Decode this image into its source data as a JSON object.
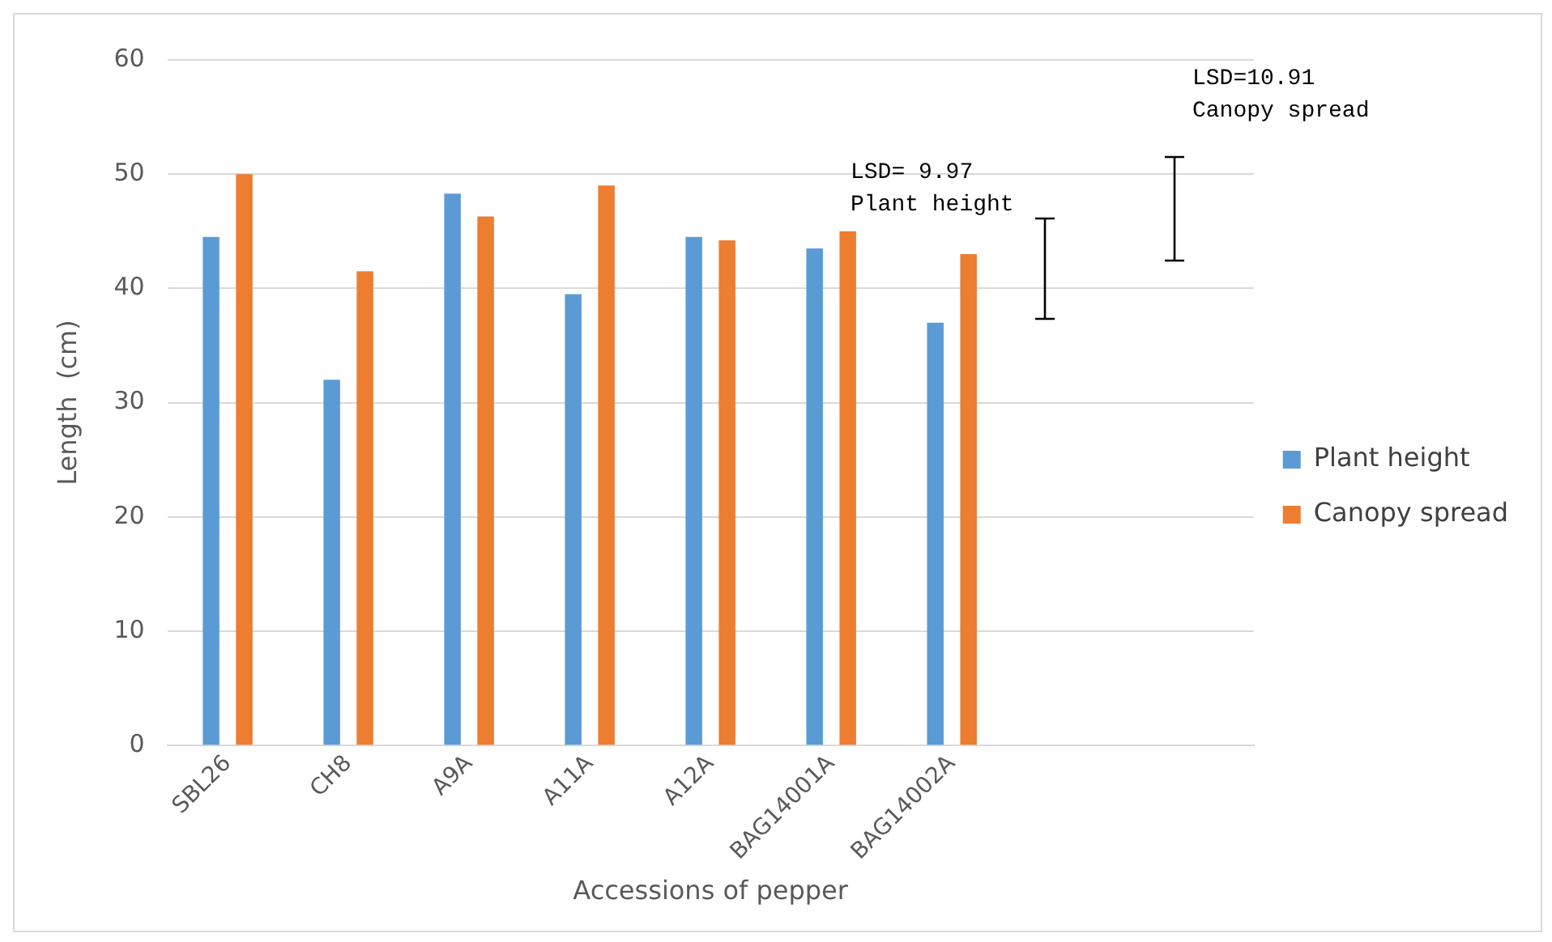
{
  "chart_data": {
    "type": "bar",
    "xlabel": "Accessions of pepper",
    "ylabel": "Length  (cm)",
    "categories": [
      "SBL26",
      "CH8",
      "A9A",
      "A11A",
      "A12A",
      "BAG14001A",
      "BAG14002A",
      null,
      null
    ],
    "series": [
      {
        "name": "Plant height",
        "color": "#5b9bd5",
        "values": [
          44.5,
          32,
          48.3,
          39.5,
          44.5,
          43.5,
          37,
          null,
          null
        ]
      },
      {
        "name": "Canopy spread",
        "color": "#ed7d31",
        "values": [
          50,
          41.5,
          46.3,
          49,
          44.2,
          45,
          43,
          null,
          null
        ]
      }
    ],
    "ylim": [
      0,
      60
    ],
    "yticks": [
      0,
      10,
      20,
      30,
      40,
      50,
      60
    ],
    "grid": "y",
    "legend": "right",
    "annotations": [
      "LSD= 9.97\nPlant height",
      "LSD=10.91\nCanopy spread"
    ]
  }
}
